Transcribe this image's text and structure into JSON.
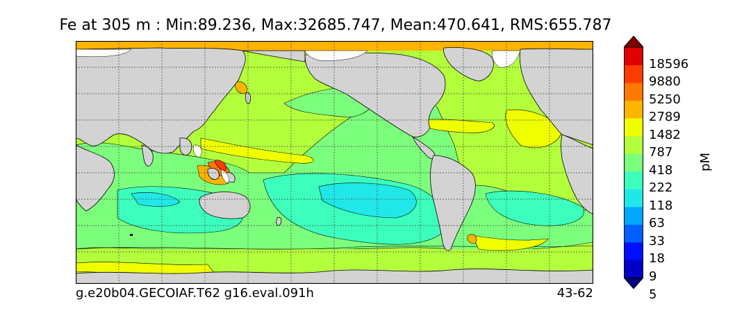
{
  "title": "Fe at 305 m : Min:89.236, Max:32685.747, Mean:470.641, RMS:655.787",
  "footer": {
    "case_name": "g.e20b04.GECOIAF.T62 g16.eval.091h",
    "year_range": "43-62"
  },
  "colorbar": {
    "unit": "pM",
    "levels": [
      "18596",
      "9880",
      "5250",
      "2789",
      "1482",
      "787",
      "418",
      "222",
      "118",
      "63",
      "33",
      "18",
      "9",
      "5"
    ],
    "colors": [
      "#000080",
      "#0000c8",
      "#0010ff",
      "#0060ff",
      "#00a8ff",
      "#20e8e8",
      "#3cffbe",
      "#7cff7c",
      "#b4ff3c",
      "#f0ff00",
      "#ffb400",
      "#ff7800",
      "#ff3c00",
      "#e00000",
      "#800000"
    ]
  },
  "map_colors": {
    "land": "#d3d3d3",
    "sea_ice": "#ffffff",
    "coast": "#000000"
  }
}
